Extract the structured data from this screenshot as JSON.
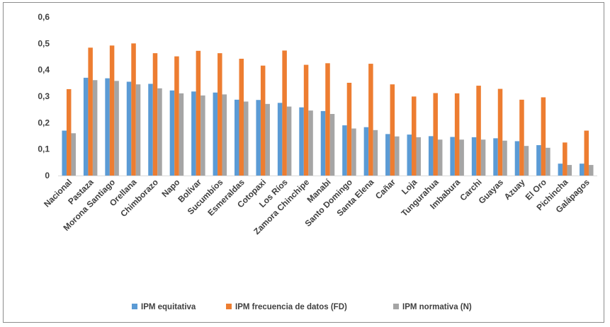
{
  "chart_data": {
    "type": "bar",
    "title": "",
    "xlabel": "",
    "ylabel": "",
    "ylim": [
      0,
      0.6
    ],
    "yticks": [
      "0",
      "0,1",
      "0,2",
      "0,3",
      "0,4",
      "0,5",
      "0,6"
    ],
    "grid": false,
    "legend_position": "bottom",
    "categories": [
      "Nacional",
      "Pastaza",
      "Morona Santiago",
      "Orellana",
      "Chimborazo",
      "Napo",
      "Bolívar",
      "Sucumbíos",
      "Esmeraldas",
      "Cotopaxi",
      "Los Ríos",
      "Zamora Chinchipe",
      "Manabí",
      "Santo Domingo",
      "Santa Elena",
      "Cañar",
      "Loja",
      "Tungurahua",
      "Imbabura",
      "Carchi",
      "Guayas",
      "Azuay",
      "El Oro",
      "Pichincha",
      "Galápagos"
    ],
    "series": [
      {
        "name": "IPM equitativa",
        "color": "#5b9bd5",
        "values": [
          0.17,
          0.37,
          0.368,
          0.355,
          0.347,
          0.322,
          0.318,
          0.314,
          0.287,
          0.286,
          0.275,
          0.258,
          0.244,
          0.19,
          0.183,
          0.157,
          0.155,
          0.149,
          0.146,
          0.145,
          0.141,
          0.13,
          0.115,
          0.045,
          0.045
        ]
      },
      {
        "name": "IPM frecuencia de datos (FD)",
        "color": "#ed7d31",
        "values": [
          0.327,
          0.484,
          0.492,
          0.5,
          0.463,
          0.451,
          0.472,
          0.463,
          0.442,
          0.416,
          0.473,
          0.419,
          0.425,
          0.351,
          0.423,
          0.345,
          0.299,
          0.312,
          0.311,
          0.34,
          0.328,
          0.287,
          0.296,
          0.125,
          0.17
        ]
      },
      {
        "name": "IPM normativa (N)",
        "color": "#a5a5a5",
        "values": [
          0.16,
          0.361,
          0.358,
          0.345,
          0.33,
          0.311,
          0.303,
          0.307,
          0.28,
          0.271,
          0.261,
          0.246,
          0.233,
          0.178,
          0.172,
          0.148,
          0.145,
          0.136,
          0.136,
          0.136,
          0.132,
          0.112,
          0.105,
          0.04,
          0.04
        ]
      }
    ]
  }
}
